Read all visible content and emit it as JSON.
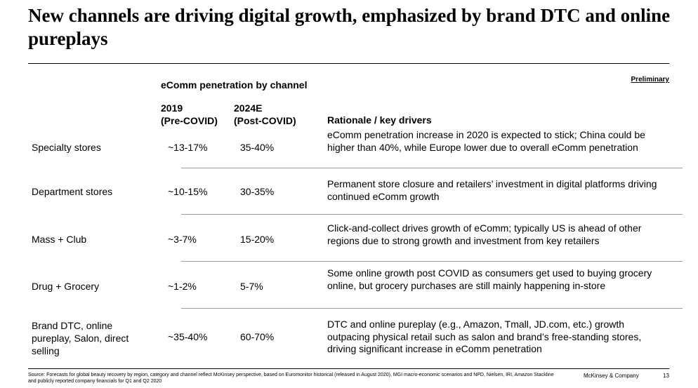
{
  "title": "New channels are driving digital growth, emphasized by brand DTC and online pureplays",
  "preliminary_label": "Preliminary",
  "section_heading": "eComm penetration by channel",
  "columns": {
    "col_2019": "2019\n(Pre-COVID)",
    "col_2024": "2024E\n(Post-COVID)",
    "rationale": "Rationale / key drivers"
  },
  "rows": [
    {
      "channel": "Specialty stores",
      "pen_2019": "~13-17%",
      "pen_2024": "35-40%",
      "rationale": "eComm penetration increase in 2020 is expected to stick; China could be higher than 40%, while Europe lower due to overall eComm penetration"
    },
    {
      "channel": "Department stores",
      "pen_2019": "~10-15%",
      "pen_2024": "30-35%",
      "rationale": "Permanent store closure and retailers’ investment in digital platforms driving continued eComm growth"
    },
    {
      "channel": "Mass + Club",
      "pen_2019": "~3-7%",
      "pen_2024": "15-20%",
      "rationale": "Click-and-collect drives growth of eComm; typically US is ahead of other regions due to strong growth and investment from key retailers"
    },
    {
      "channel": "Drug + Grocery",
      "pen_2019": "~1-2%",
      "pen_2024": "5-7%",
      "rationale": "Some online growth post COVID as consumers get used to buying grocery online, but grocery purchases are still mainly happening in-store"
    },
    {
      "channel": "Brand DTC, online pureplay, Salon, direct selling",
      "pen_2019": "~35-40%",
      "pen_2024": "60-70%",
      "rationale": "DTC and online pureplay (e.g., Amazon, Tmall, JD.com, etc.) growth outpacing physical retail such as salon and brand’s free-standing stores, driving significant increase in eComm penetration"
    }
  ],
  "footer": {
    "source": "Source: Forecasts for global beauty recovery by region, category and channel reflect McKinsey perspective, based on Euromonitor historical (released in August 2020), MGI macro-economic scenarios and NPD, Nielsen, IRI, Amazon Stackline and publicly reported company financials for Q1 and Q2 2020",
    "brand": "McKinsey & Company",
    "page": "13"
  }
}
